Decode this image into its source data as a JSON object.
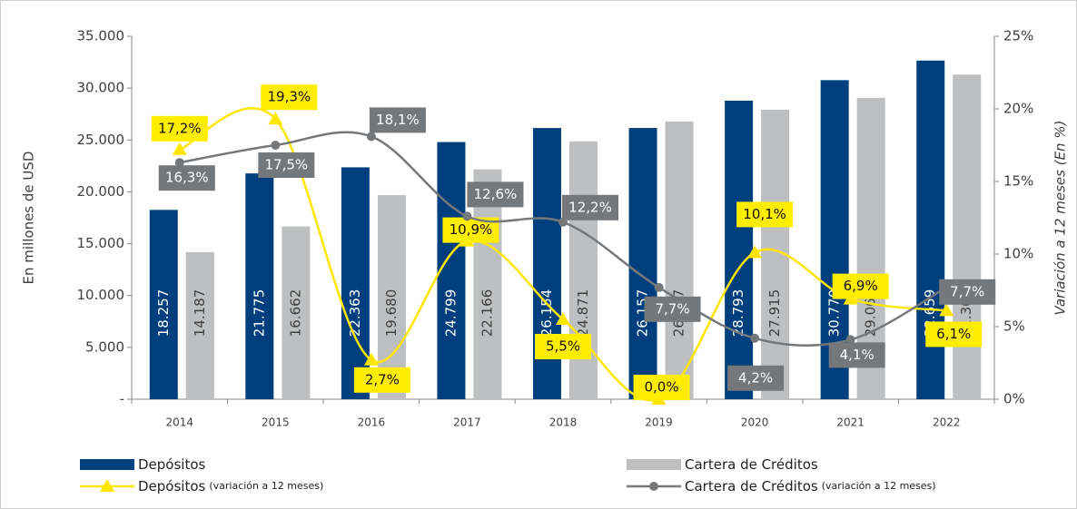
{
  "chart_data": {
    "type": "bar",
    "categories": [
      "2014",
      "2015",
      "2016",
      "2017",
      "2018",
      "2019",
      "2020",
      "2021",
      "2022"
    ],
    "ylabel": "En millones de USD",
    "y2label": "Variación a 12 meses (En %)",
    "ylim": [
      0,
      35000
    ],
    "yticks": [
      {
        "value": 0,
        "label": "-"
      },
      {
        "value": 5000,
        "label": "5.000"
      },
      {
        "value": 10000,
        "label": "10.000"
      },
      {
        "value": 15000,
        "label": "15.000"
      },
      {
        "value": 20000,
        "label": "20.000"
      },
      {
        "value": 25000,
        "label": "25.000"
      },
      {
        "value": 30000,
        "label": "30.000"
      },
      {
        "value": 35000,
        "label": "35.000"
      }
    ],
    "y2lim": [
      0,
      25
    ],
    "y2ticks": [
      {
        "value": 0,
        "label": "0%"
      },
      {
        "value": 5,
        "label": "5%"
      },
      {
        "value": 10,
        "label": "10%"
      },
      {
        "value": 15,
        "label": "15%"
      },
      {
        "value": 20,
        "label": "20%"
      },
      {
        "value": 25,
        "label": "25%"
      }
    ],
    "series": [
      {
        "name": "Depósitos",
        "type": "bar",
        "color": "#003f7d",
        "values": [
          18257,
          21775,
          22363,
          24799,
          26154,
          26157,
          28793,
          30770,
          32659
        ],
        "value_labels": [
          "18.257",
          "21.775",
          "22.363",
          "24.799",
          "26.154",
          "26.157",
          "28.793",
          "30.770",
          "32.659"
        ]
      },
      {
        "name": "Cartera de Créditos",
        "type": "bar",
        "color": "#bdbfc1",
        "values": [
          14187,
          16662,
          19680,
          22166,
          24871,
          26787,
          27915,
          29064,
          31305
        ],
        "value_labels": [
          "14.187",
          "16.662",
          "19.680",
          "22.166",
          "24.871",
          "26.787",
          "27.915",
          "29.064",
          "31.305"
        ]
      },
      {
        "name": "Depósitos",
        "name_note": "(variación a 12 meses)",
        "type": "line",
        "axis": "y2",
        "color": "#ffe600",
        "marker": "triangle",
        "values": [
          17.2,
          19.3,
          2.7,
          10.9,
          5.5,
          0.0,
          10.1,
          6.9,
          6.1
        ],
        "value_labels": [
          "17,2%",
          "19,3%",
          "2,7%",
          "10,9%",
          "5,5%",
          "0,0%",
          "10,1%",
          "6,9%",
          "6,1%"
        ]
      },
      {
        "name": "Cartera de Créditos",
        "name_note": "(variación a 12 meses)",
        "type": "line",
        "axis": "y2",
        "color": "#75787b",
        "marker": "circle",
        "values": [
          16.3,
          17.5,
          18.1,
          12.6,
          12.2,
          7.7,
          4.2,
          4.1,
          7.7
        ],
        "value_labels": [
          "16,3%",
          "17,5%",
          "18,1%",
          "12,6%",
          "12,2%",
          "7,7%",
          "4,2%",
          "4,1%",
          "7,7%"
        ]
      }
    ]
  }
}
